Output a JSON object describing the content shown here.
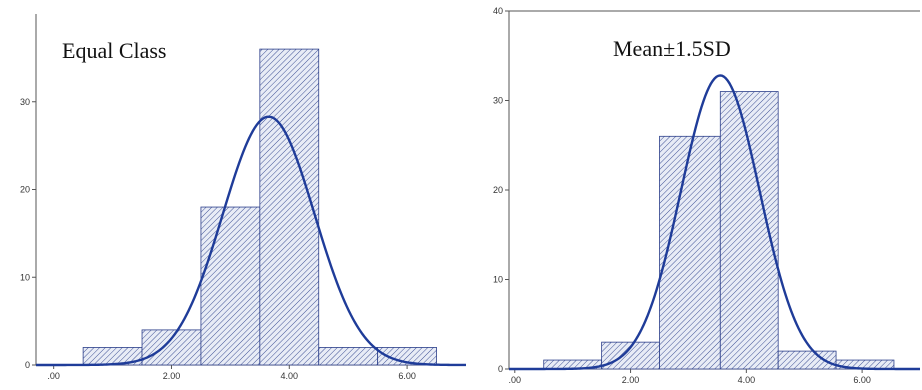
{
  "chart_data": [
    {
      "type": "bar",
      "title": "Equal Class",
      "xlim": [
        -0.3,
        7.0
      ],
      "ylim": [
        0,
        40
      ],
      "x_ticks": [
        {
          "value": 0,
          "label": ".00"
        },
        {
          "value": 2,
          "label": "2.00"
        },
        {
          "value": 4,
          "label": "4.00"
        },
        {
          "value": 6,
          "label": "6.00"
        }
      ],
      "y_ticks": [
        {
          "value": 0,
          "label": "0"
        },
        {
          "value": 10,
          "label": "10"
        },
        {
          "value": 20,
          "label": "20"
        },
        {
          "value": 30,
          "label": "30"
        }
      ],
      "bins": [
        {
          "start": 0.5,
          "end": 1.5,
          "count": 2
        },
        {
          "start": 1.5,
          "end": 2.5,
          "count": 4
        },
        {
          "start": 2.5,
          "end": 3.5,
          "count": 18
        },
        {
          "start": 3.5,
          "end": 4.5,
          "count": 36
        },
        {
          "start": 4.5,
          "end": 5.5,
          "count": 2
        },
        {
          "start": 5.5,
          "end": 6.5,
          "count": 2
        }
      ],
      "normal_curve": {
        "mean": 3.65,
        "sd": 0.78,
        "peak": 28.3
      },
      "colors": {
        "bar_fill": "#e8ecf6",
        "hatch": "#2c3f8a",
        "curve": "#1f3c99",
        "axis": "#555555"
      }
    },
    {
      "type": "bar",
      "title": "Mean±1.5SD",
      "xlim": [
        -0.1,
        7.0
      ],
      "ylim": [
        0,
        40
      ],
      "x_ticks": [
        {
          "value": 0,
          "label": ".00"
        },
        {
          "value": 2,
          "label": "2.00"
        },
        {
          "value": 4,
          "label": "4.00"
        },
        {
          "value": 6,
          "label": "6.00"
        }
      ],
      "y_ticks": [
        {
          "value": 0,
          "label": "0"
        },
        {
          "value": 10,
          "label": "10"
        },
        {
          "value": 20,
          "label": "20"
        },
        {
          "value": 30,
          "label": "30"
        },
        {
          "value": 40,
          "label": "40"
        }
      ],
      "bins": [
        {
          "start": 0.5,
          "end": 1.5,
          "count": 1
        },
        {
          "start": 1.5,
          "end": 2.5,
          "count": 3
        },
        {
          "start": 2.5,
          "end": 3.55,
          "count": 26
        },
        {
          "start": 3.55,
          "end": 4.55,
          "count": 31
        },
        {
          "start": 4.55,
          "end": 5.55,
          "count": 2
        },
        {
          "start": 5.55,
          "end": 6.55,
          "count": 1
        }
      ],
      "normal_curve": {
        "mean": 3.55,
        "sd": 0.68,
        "peak": 32.8
      },
      "colors": {
        "bar_fill": "#e8ecf6",
        "hatch": "#2c3f8a",
        "curve": "#1f3c99",
        "axis": "#555555"
      }
    }
  ]
}
